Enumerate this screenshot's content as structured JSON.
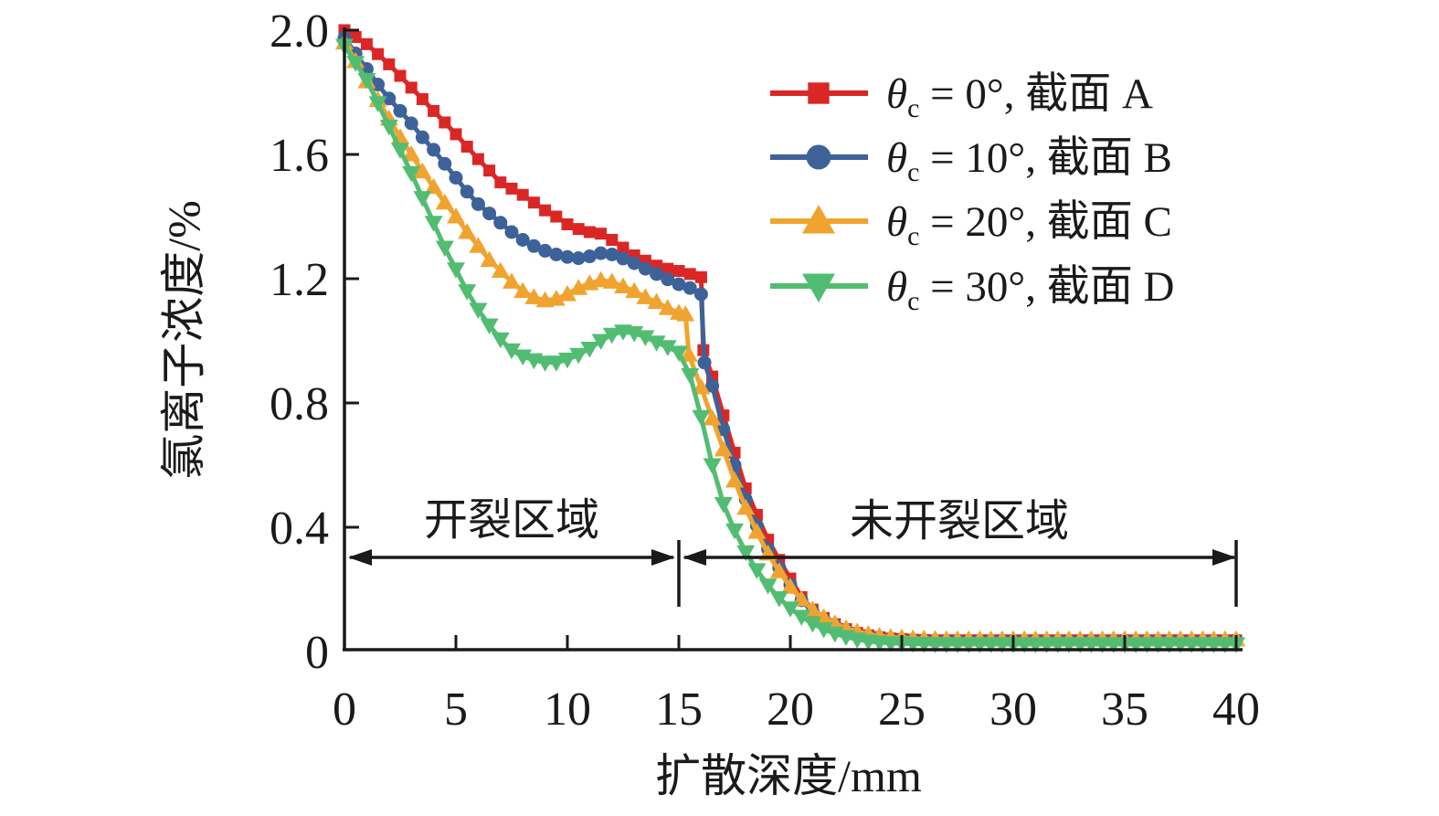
{
  "chart_data": {
    "type": "line",
    "title": "",
    "xlabel": "扩散深度/mm",
    "ylabel": "氯离子浓度/%",
    "xlim": [
      0,
      40
    ],
    "ylim": [
      0,
      2.0
    ],
    "grid": false,
    "legend_position": "top-right",
    "x_ticks": [
      {
        "v": 0,
        "label": "0"
      },
      {
        "v": 5,
        "label": "5"
      },
      {
        "v": 10,
        "label": "10"
      },
      {
        "v": 15,
        "label": "15"
      },
      {
        "v": 20,
        "label": "20"
      },
      {
        "v": 25,
        "label": "25"
      },
      {
        "v": 30,
        "label": "30"
      },
      {
        "v": 35,
        "label": "35"
      },
      {
        "v": 40,
        "label": "40"
      }
    ],
    "y_ticks": [
      {
        "v": 0,
        "label": "0"
      },
      {
        "v": 0.4,
        "label": "0.4"
      },
      {
        "v": 0.8,
        "label": "0.8"
      },
      {
        "v": 1.2,
        "label": "1.2"
      },
      {
        "v": 1.6,
        "label": "1.6"
      },
      {
        "v": 2.0,
        "label": "2.0"
      }
    ],
    "annotations": [
      {
        "text": "开裂区域",
        "x_range": [
          0,
          15
        ],
        "y": 0.3
      },
      {
        "text": "未开裂区域",
        "x_range": [
          15,
          40
        ],
        "y": 0.3
      }
    ],
    "legend_items": [
      {
        "symbol": "θ",
        "subscript": "c",
        "text": " = 0°, 截面 A",
        "marker": "square",
        "color": "#da2726"
      },
      {
        "symbol": "θ",
        "subscript": "c",
        "text": " = 10°, 截面 B",
        "marker": "circle",
        "color": "#3d6299"
      },
      {
        "symbol": "θ",
        "subscript": "c",
        "text": " = 20°, 截面 C",
        "marker": "tri-up",
        "color": "#f0a42f"
      },
      {
        "symbol": "θ",
        "subscript": "c",
        "text": " = 30°, 截面 D",
        "marker": "tri-down",
        "color": "#52bd72"
      }
    ],
    "series": [
      {
        "name": "θc = 0°, 截面 A",
        "marker": "square",
        "color": "#da2726",
        "points": [
          [
            0,
            2.0
          ],
          [
            0.5,
            1.978
          ],
          [
            1,
            1.955
          ],
          [
            1.5,
            1.923
          ],
          [
            2,
            1.89
          ],
          [
            2.5,
            1.853
          ],
          [
            3,
            1.815
          ],
          [
            3.5,
            1.778
          ],
          [
            4,
            1.74
          ],
          [
            4.5,
            1.703
          ],
          [
            5,
            1.665
          ],
          [
            5.5,
            1.625
          ],
          [
            6,
            1.585
          ],
          [
            6.5,
            1.548
          ],
          [
            7,
            1.51
          ],
          [
            7.5,
            1.49
          ],
          [
            8,
            1.47
          ],
          [
            8.5,
            1.445
          ],
          [
            9,
            1.42
          ],
          [
            9.5,
            1.4
          ],
          [
            10,
            1.375
          ],
          [
            10.5,
            1.36
          ],
          [
            11,
            1.35
          ],
          [
            11.5,
            1.345
          ],
          [
            12,
            1.325
          ],
          [
            12.5,
            1.3
          ],
          [
            13,
            1.275
          ],
          [
            13.5,
            1.258
          ],
          [
            14,
            1.242
          ],
          [
            14.5,
            1.232
          ],
          [
            15,
            1.225
          ],
          [
            15.5,
            1.215
          ],
          [
            16,
            1.205
          ],
          [
            16.1,
            0.97
          ],
          [
            16.5,
            0.885
          ],
          [
            17,
            0.76
          ],
          [
            17.5,
            0.64
          ],
          [
            18,
            0.525
          ],
          [
            18.5,
            0.44
          ],
          [
            19,
            0.36
          ],
          [
            19.5,
            0.295
          ],
          [
            20,
            0.235
          ],
          [
            20.5,
            0.175
          ],
          [
            21,
            0.135
          ],
          [
            21.5,
            0.108
          ],
          [
            22,
            0.088
          ],
          [
            22.5,
            0.072
          ],
          [
            23,
            0.06
          ],
          [
            23.5,
            0.052
          ],
          [
            24,
            0.046
          ],
          [
            24.5,
            0.042
          ],
          [
            25,
            0.04
          ],
          [
            25.5,
            0.038
          ],
          [
            26,
            0.037
          ]
        ],
        "tail": {
          "x_start": 26.5,
          "x_end": 40,
          "step": 0.5,
          "y": 0.036
        }
      },
      {
        "name": "θc = 10°, 截面 B",
        "marker": "circle",
        "color": "#3d6299",
        "points": [
          [
            0,
            1.975
          ],
          [
            0.5,
            1.925
          ],
          [
            1,
            1.875
          ],
          [
            1.5,
            1.825
          ],
          [
            2,
            1.78
          ],
          [
            2.5,
            1.74
          ],
          [
            3,
            1.7
          ],
          [
            3.5,
            1.655
          ],
          [
            4,
            1.615
          ],
          [
            4.5,
            1.57
          ],
          [
            5,
            1.525
          ],
          [
            5.5,
            1.48
          ],
          [
            6,
            1.44
          ],
          [
            6.5,
            1.41
          ],
          [
            7,
            1.38
          ],
          [
            7.5,
            1.35
          ],
          [
            8,
            1.325
          ],
          [
            8.5,
            1.305
          ],
          [
            9,
            1.29
          ],
          [
            9.5,
            1.278
          ],
          [
            10,
            1.27
          ],
          [
            10.5,
            1.266
          ],
          [
            11,
            1.272
          ],
          [
            11.5,
            1.282
          ],
          [
            12,
            1.278
          ],
          [
            12.5,
            1.265
          ],
          [
            13,
            1.25
          ],
          [
            13.5,
            1.232
          ],
          [
            14,
            1.215
          ],
          [
            14.5,
            1.198
          ],
          [
            15,
            1.182
          ],
          [
            15.5,
            1.17
          ],
          [
            16,
            1.15
          ],
          [
            16.15,
            0.93
          ],
          [
            16.5,
            0.855
          ],
          [
            17,
            0.715
          ],
          [
            17.5,
            0.6
          ],
          [
            18,
            0.49
          ],
          [
            18.5,
            0.405
          ],
          [
            19,
            0.33
          ],
          [
            19.5,
            0.27
          ],
          [
            20,
            0.215
          ],
          [
            20.5,
            0.165
          ],
          [
            21,
            0.128
          ],
          [
            21.5,
            0.102
          ],
          [
            22,
            0.083
          ],
          [
            22.5,
            0.068
          ],
          [
            23,
            0.056
          ],
          [
            23.5,
            0.048
          ],
          [
            24,
            0.043
          ],
          [
            24.5,
            0.039
          ],
          [
            25,
            0.037
          ],
          [
            25.5,
            0.036
          ],
          [
            26,
            0.035
          ]
        ],
        "tail": {
          "x_start": 26.5,
          "x_end": 40,
          "step": 0.5,
          "y": 0.034
        }
      },
      {
        "name": "θc = 20°, 截面 C",
        "marker": "tri-up",
        "color": "#f0a42f",
        "points": [
          [
            0,
            1.96
          ],
          [
            0.5,
            1.9
          ],
          [
            1,
            1.835
          ],
          [
            1.5,
            1.775
          ],
          [
            2,
            1.715
          ],
          [
            2.5,
            1.655
          ],
          [
            3,
            1.6
          ],
          [
            3.5,
            1.545
          ],
          [
            4,
            1.495
          ],
          [
            4.5,
            1.445
          ],
          [
            5,
            1.4
          ],
          [
            5.5,
            1.35
          ],
          [
            6,
            1.305
          ],
          [
            6.5,
            1.26
          ],
          [
            7,
            1.225
          ],
          [
            7.5,
            1.19
          ],
          [
            8,
            1.16
          ],
          [
            8.5,
            1.14
          ],
          [
            9,
            1.13
          ],
          [
            9.5,
            1.135
          ],
          [
            10,
            1.15
          ],
          [
            10.5,
            1.17
          ],
          [
            11,
            1.185
          ],
          [
            11.5,
            1.195
          ],
          [
            12,
            1.19
          ],
          [
            12.5,
            1.175
          ],
          [
            13,
            1.16
          ],
          [
            13.5,
            1.14
          ],
          [
            14,
            1.125
          ],
          [
            14.5,
            1.105
          ],
          [
            15,
            1.09
          ],
          [
            15.3,
            1.085
          ],
          [
            15.45,
            0.955
          ],
          [
            16,
            0.85
          ],
          [
            16.5,
            0.75
          ],
          [
            17,
            0.65
          ],
          [
            17.5,
            0.55
          ],
          [
            18,
            0.462
          ],
          [
            18.5,
            0.385
          ],
          [
            19,
            0.315
          ],
          [
            19.5,
            0.258
          ],
          [
            20,
            0.208
          ],
          [
            20.5,
            0.168
          ],
          [
            21,
            0.135
          ],
          [
            21.5,
            0.11
          ],
          [
            22,
            0.09
          ],
          [
            22.5,
            0.075
          ],
          [
            23,
            0.064
          ],
          [
            23.5,
            0.056
          ],
          [
            24,
            0.05
          ],
          [
            24.5,
            0.046
          ],
          [
            25,
            0.044
          ],
          [
            25.5,
            0.042
          ],
          [
            26,
            0.041
          ],
          [
            26.5,
            0.04
          ]
        ],
        "tail": {
          "x_start": 27,
          "x_end": 40,
          "step": 0.5,
          "y": 0.039
        }
      },
      {
        "name": "θc = 30°, 截面 D",
        "marker": "tri-down",
        "color": "#52bd72",
        "points": [
          [
            0,
            1.95
          ],
          [
            0.5,
            1.895
          ],
          [
            1,
            1.84
          ],
          [
            1.5,
            1.765
          ],
          [
            2,
            1.69
          ],
          [
            2.5,
            1.615
          ],
          [
            3,
            1.54
          ],
          [
            3.5,
            1.46
          ],
          [
            4,
            1.38
          ],
          [
            4.5,
            1.3
          ],
          [
            5,
            1.23
          ],
          [
            5.5,
            1.16
          ],
          [
            6,
            1.1
          ],
          [
            6.5,
            1.05
          ],
          [
            7,
            1.005
          ],
          [
            7.5,
            0.97
          ],
          [
            8,
            0.95
          ],
          [
            8.5,
            0.938
          ],
          [
            9,
            0.93
          ],
          [
            9.5,
            0.93
          ],
          [
            10,
            0.94
          ],
          [
            10.5,
            0.955
          ],
          [
            11,
            0.975
          ],
          [
            11.5,
            1.0
          ],
          [
            12,
            1.02
          ],
          [
            12.5,
            1.03
          ],
          [
            13,
            1.025
          ],
          [
            13.5,
            1.012
          ],
          [
            14,
            0.995
          ],
          [
            14.5,
            0.98
          ],
          [
            15,
            0.962
          ],
          [
            15.5,
            0.89
          ],
          [
            16,
            0.755
          ],
          [
            16.5,
            0.6
          ],
          [
            17,
            0.475
          ],
          [
            17.5,
            0.39
          ],
          [
            18,
            0.32
          ],
          [
            18.5,
            0.262
          ],
          [
            19,
            0.213
          ],
          [
            19.5,
            0.172
          ],
          [
            20,
            0.139
          ],
          [
            20.5,
            0.112
          ],
          [
            21,
            0.09
          ],
          [
            21.5,
            0.072
          ],
          [
            22,
            0.058
          ],
          [
            22.5,
            0.047
          ],
          [
            23,
            0.039
          ],
          [
            23.5,
            0.033
          ],
          [
            24,
            0.029
          ],
          [
            24.5,
            0.027
          ],
          [
            25,
            0.026
          ],
          [
            25.5,
            0.0255
          ],
          [
            26,
            0.025
          ]
        ],
        "tail": {
          "x_start": 26.5,
          "x_end": 40,
          "step": 0.5,
          "y": 0.024
        }
      }
    ]
  }
}
